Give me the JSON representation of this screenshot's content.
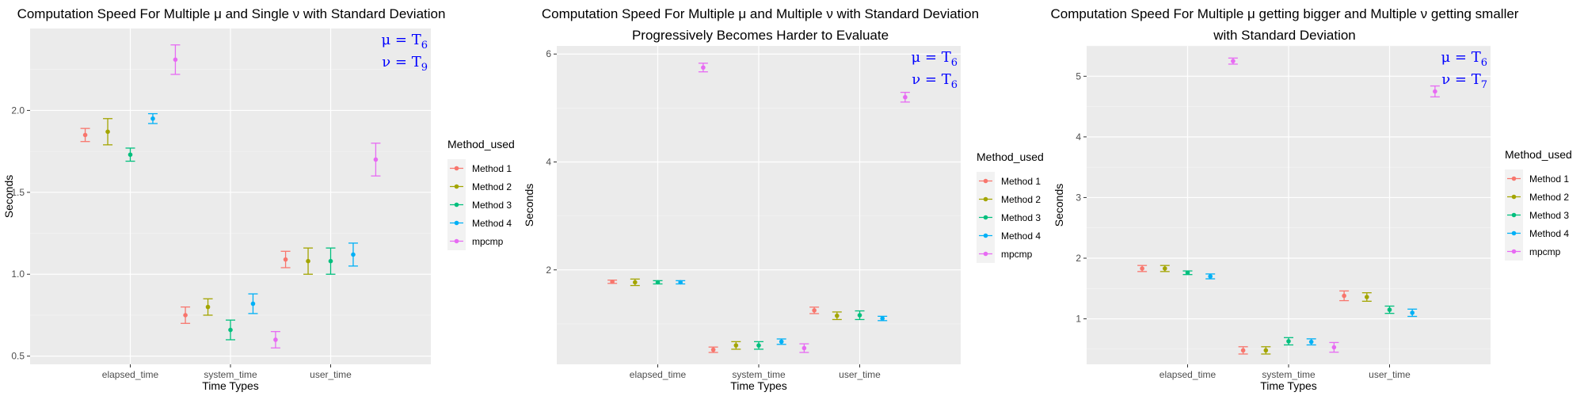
{
  "chart_data": [
    {
      "type": "scatter",
      "title_lines": [
        "Computation Speed For Multiple μ and Single ν with Standard Deviation"
      ],
      "xlabel": "Time Types",
      "ylabel": "Seconds",
      "categories": [
        "elapsed_time",
        "system_time",
        "user_time"
      ],
      "ylim": [
        0.45,
        2.5
      ],
      "yticks": [
        0.5,
        1.0,
        1.5,
        2.0
      ],
      "ytick_labels": [
        "0.5",
        "1.0",
        "1.5",
        "2.0"
      ],
      "grid": true,
      "legend": {
        "title": "Method_used",
        "position": "right"
      },
      "annotation": {
        "mu_prefix": "μ = T",
        "mu_sub": "6",
        "nu_prefix": "ν = T",
        "nu_sub": "9",
        "color": "#0000ff"
      },
      "series": [
        {
          "name": "Method 1",
          "color": "#F8766D",
          "mean": [
            1.85,
            0.75,
            1.09
          ],
          "sd": [
            0.04,
            0.05,
            0.05
          ]
        },
        {
          "name": "Method 2",
          "color": "#A3A500",
          "mean": [
            1.87,
            0.8,
            1.08
          ],
          "sd": [
            0.08,
            0.05,
            0.08
          ]
        },
        {
          "name": "Method 3",
          "color": "#00BF7D",
          "mean": [
            1.73,
            0.66,
            1.08
          ],
          "sd": [
            0.04,
            0.06,
            0.08
          ]
        },
        {
          "name": "Method 4",
          "color": "#00B0F6",
          "mean": [
            1.95,
            0.82,
            1.12
          ],
          "sd": [
            0.03,
            0.06,
            0.07
          ]
        },
        {
          "name": "mpcmp",
          "color": "#E76BF3",
          "mean": [
            2.31,
            0.6,
            1.7
          ],
          "sd": [
            0.09,
            0.05,
            0.1
          ]
        }
      ]
    },
    {
      "type": "scatter",
      "title_lines": [
        "Computation Speed For Multiple μ and Multiple ν with Standard Deviation",
        "Progressively Becomes Harder to Evaluate"
      ],
      "xlabel": "Time Types",
      "ylabel": "Seconds",
      "categories": [
        "elapsed_time",
        "system_time",
        "user_time"
      ],
      "ylim": [
        0.25,
        6.15
      ],
      "yticks": [
        2,
        4,
        6
      ],
      "ytick_labels": [
        "2",
        "4",
        "6"
      ],
      "grid": true,
      "legend": {
        "title": "Method_used",
        "position": "right"
      },
      "annotation": {
        "mu_prefix": "μ = T",
        "mu_sub": "6",
        "nu_prefix": "ν = T",
        "nu_sub": "6",
        "color": "#0000ff"
      },
      "series": [
        {
          "name": "Method 1",
          "color": "#F8766D",
          "mean": [
            1.78,
            0.52,
            1.25
          ],
          "sd": [
            0.03,
            0.05,
            0.06
          ]
        },
        {
          "name": "Method 2",
          "color": "#A3A500",
          "mean": [
            1.77,
            0.6,
            1.15
          ],
          "sd": [
            0.06,
            0.07,
            0.07
          ]
        },
        {
          "name": "Method 3",
          "color": "#00BF7D",
          "mean": [
            1.77,
            0.6,
            1.16
          ],
          "sd": [
            0.03,
            0.07,
            0.08
          ]
        },
        {
          "name": "Method 4",
          "color": "#00B0F6",
          "mean": [
            1.77,
            0.67,
            1.1
          ],
          "sd": [
            0.03,
            0.05,
            0.04
          ]
        },
        {
          "name": "mpcmp",
          "color": "#E76BF3",
          "mean": [
            5.75,
            0.55,
            5.2
          ],
          "sd": [
            0.08,
            0.08,
            0.09
          ]
        }
      ]
    },
    {
      "type": "scatter",
      "title_lines": [
        "Computation Speed For Multiple μ getting bigger and Multiple ν getting smaller",
        "with Standard Deviation"
      ],
      "xlabel": "Time Types",
      "ylabel": "Seconds",
      "categories": [
        "elapsed_time",
        "system_time",
        "user_time"
      ],
      "ylim": [
        0.25,
        5.5
      ],
      "yticks": [
        1,
        2,
        3,
        4,
        5
      ],
      "ytick_labels": [
        "1",
        "2",
        "3",
        "4",
        "5"
      ],
      "grid": true,
      "legend": {
        "title": "Method_used",
        "position": "right"
      },
      "annotation": {
        "mu_prefix": "μ = T",
        "mu_sub": "6",
        "nu_prefix": "ν = T",
        "nu_sub": "7",
        "color": "#0000ff"
      },
      "series": [
        {
          "name": "Method 1",
          "color": "#F8766D",
          "mean": [
            1.83,
            0.48,
            1.38
          ],
          "sd": [
            0.05,
            0.06,
            0.08
          ]
        },
        {
          "name": "Method 2",
          "color": "#A3A500",
          "mean": [
            1.83,
            0.48,
            1.36
          ],
          "sd": [
            0.05,
            0.06,
            0.07
          ]
        },
        {
          "name": "Method 3",
          "color": "#00BF7D",
          "mean": [
            1.76,
            0.63,
            1.15
          ],
          "sd": [
            0.03,
            0.06,
            0.06
          ]
        },
        {
          "name": "Method 4",
          "color": "#00B0F6",
          "mean": [
            1.7,
            0.62,
            1.1
          ],
          "sd": [
            0.04,
            0.05,
            0.06
          ]
        },
        {
          "name": "mpcmp",
          "color": "#E76BF3",
          "mean": [
            5.25,
            0.53,
            4.75
          ],
          "sd": [
            0.05,
            0.08,
            0.09
          ]
        }
      ]
    }
  ]
}
